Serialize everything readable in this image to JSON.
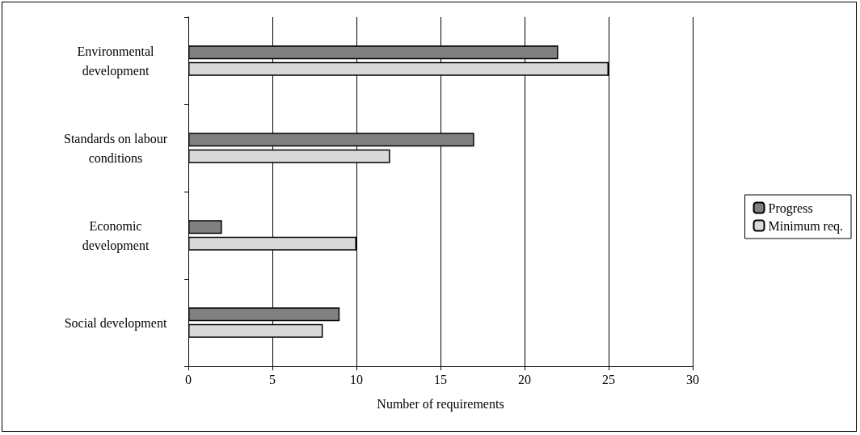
{
  "chart_data": {
    "type": "bar",
    "orientation": "horizontal",
    "xlabel": "Number of requirements",
    "categories": [
      "Environmental\ndevelopment",
      "Standards on labour\nconditions",
      "Economic\ndevelopment",
      "Social development"
    ],
    "series": [
      {
        "name": "Progress",
        "color": "#808080",
        "values": [
          22,
          17,
          2,
          9
        ]
      },
      {
        "name": "Minimum req.",
        "color": "#d9d9d9",
        "values": [
          25,
          12,
          10,
          8
        ]
      }
    ],
    "xlim": [
      0,
      30
    ],
    "xticks": [
      0,
      5,
      10,
      15,
      20,
      25,
      30
    ],
    "grid": "x",
    "legend": "right"
  }
}
